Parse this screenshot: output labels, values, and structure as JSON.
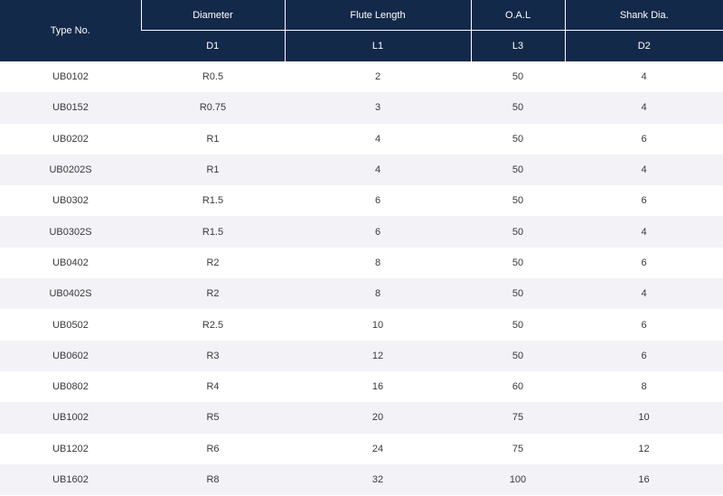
{
  "header": {
    "type_no": "Type No.",
    "diameter": "Diameter",
    "flute_length": "Flute Length",
    "oal": "O.A.L",
    "shank_dia": "Shank Dia.",
    "d1": "D1",
    "l1": "L1",
    "l3": "L3",
    "d2": "D2"
  },
  "rows": [
    {
      "type": "UB0102",
      "d1": "R0.5",
      "l1": "2",
      "l3": "50",
      "d2": "4"
    },
    {
      "type": "UB0152",
      "d1": "R0.75",
      "l1": "3",
      "l3": "50",
      "d2": "4"
    },
    {
      "type": "UB0202",
      "d1": "R1",
      "l1": "4",
      "l3": "50",
      "d2": "6"
    },
    {
      "type": "UB0202S",
      "d1": "R1",
      "l1": "4",
      "l3": "50",
      "d2": "4"
    },
    {
      "type": "UB0302",
      "d1": "R1.5",
      "l1": "6",
      "l3": "50",
      "d2": "6"
    },
    {
      "type": "UB0302S",
      "d1": "R1.5",
      "l1": "6",
      "l3": "50",
      "d2": "4"
    },
    {
      "type": "UB0402",
      "d1": "R2",
      "l1": "8",
      "l3": "50",
      "d2": "6"
    },
    {
      "type": "UB0402S",
      "d1": "R2",
      "l1": "8",
      "l3": "50",
      "d2": "4"
    },
    {
      "type": "UB0502",
      "d1": "R2.5",
      "l1": "10",
      "l3": "50",
      "d2": "6"
    },
    {
      "type": "UB0602",
      "d1": "R3",
      "l1": "12",
      "l3": "50",
      "d2": "6"
    },
    {
      "type": "UB0802",
      "d1": "R4",
      "l1": "16",
      "l3": "60",
      "d2": "8"
    },
    {
      "type": "UB1002",
      "d1": "R5",
      "l1": "20",
      "l3": "75",
      "d2": "10"
    },
    {
      "type": "UB1202",
      "d1": "R6",
      "l1": "24",
      "l3": "75",
      "d2": "12"
    },
    {
      "type": "UB1602",
      "d1": "R8",
      "l1": "32",
      "l3": "100",
      "d2": "16"
    }
  ],
  "colors": {
    "header_bg": "#13294a",
    "stripe": "#f2f2f7"
  }
}
